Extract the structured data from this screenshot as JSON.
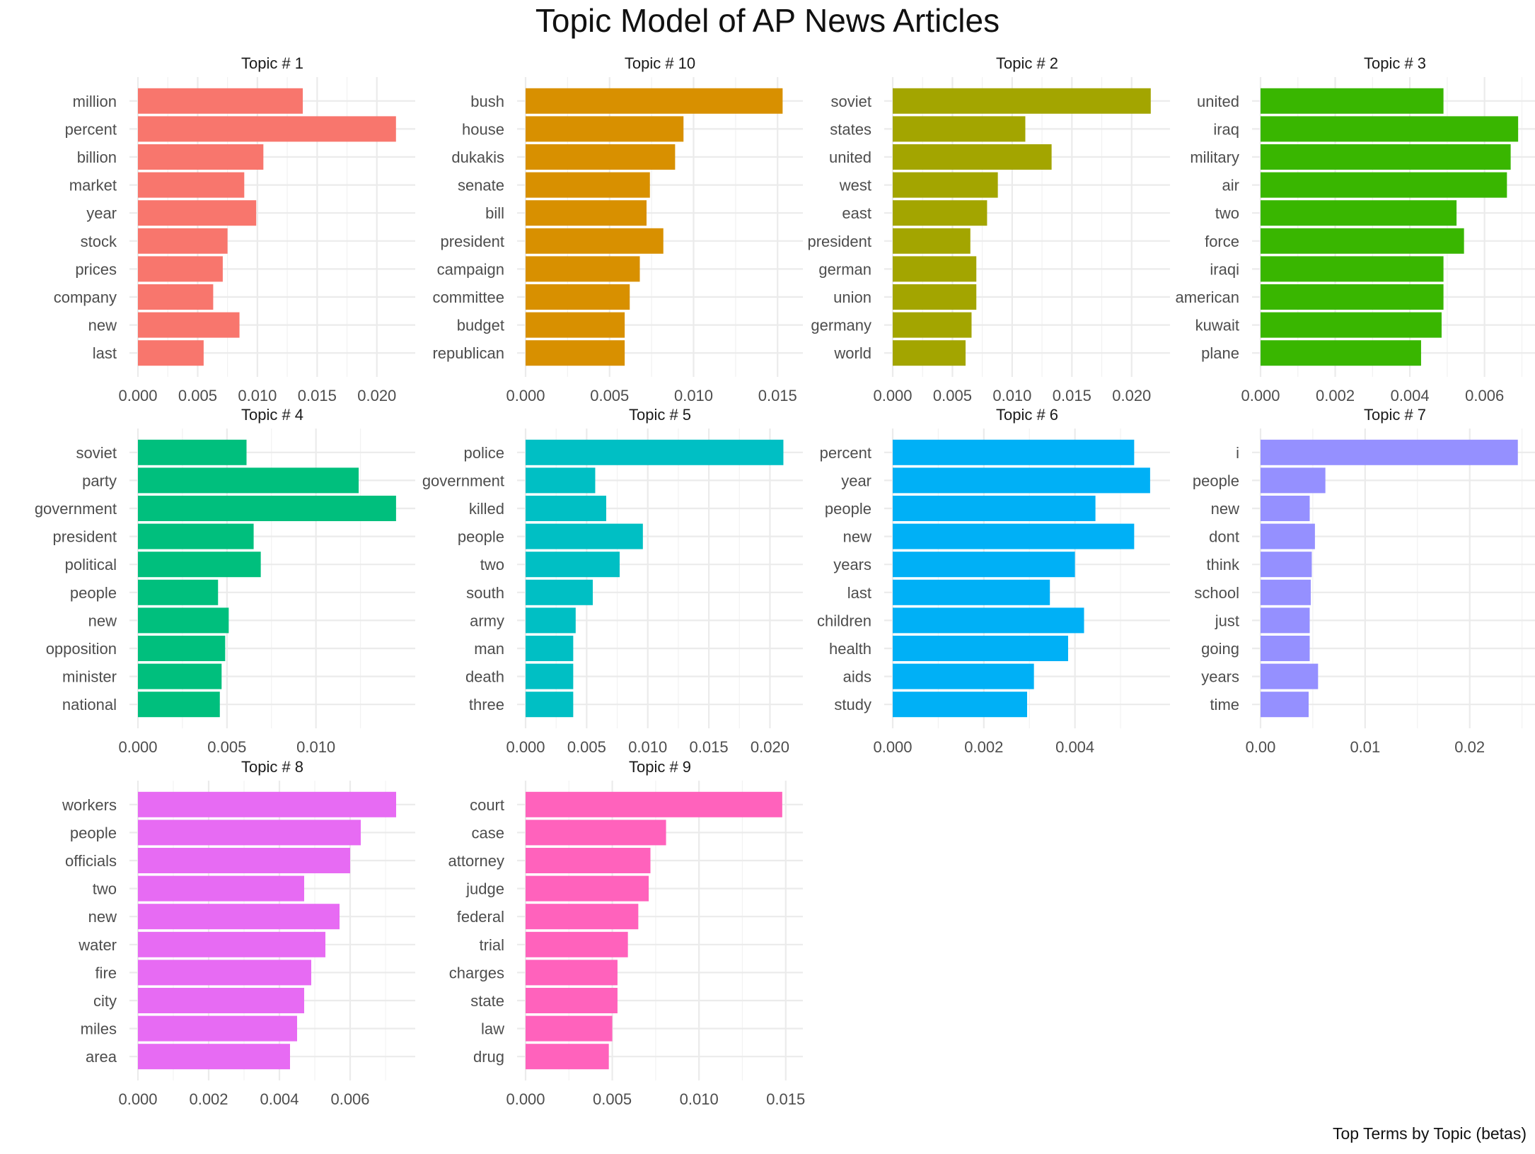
{
  "title": "Topic Model of AP News Articles",
  "caption": "Top Terms by Topic (betas)",
  "chart_data": [
    {
      "type": "bar",
      "orientation": "horizontal",
      "title": "Topic # 1",
      "color": "#F8766D",
      "categories": [
        "million",
        "percent",
        "billion",
        "market",
        "year",
        "stock",
        "prices",
        "company",
        "new",
        "last"
      ],
      "values": [
        0.0138,
        0.0216,
        0.0105,
        0.0089,
        0.0099,
        0.0075,
        0.0071,
        0.0063,
        0.0085,
        0.0055
      ],
      "ticks": [
        "0.000",
        "0.005",
        "0.010",
        "0.015",
        "0.020"
      ],
      "tick_values": [
        0,
        0.005,
        0.01,
        0.015,
        0.02
      ],
      "xlim": [
        0,
        0.0225
      ]
    },
    {
      "type": "bar",
      "orientation": "horizontal",
      "title": "Topic # 10",
      "color": "#D89000",
      "categories": [
        "bush",
        "house",
        "dukakis",
        "senate",
        "bill",
        "president",
        "campaign",
        "committee",
        "budget",
        "republican"
      ],
      "values": [
        0.0153,
        0.0094,
        0.0089,
        0.0074,
        0.0072,
        0.0082,
        0.0068,
        0.0062,
        0.0059,
        0.0059
      ],
      "ticks": [
        "0.000",
        "0.005",
        "0.010",
        "0.015"
      ],
      "tick_values": [
        0,
        0.005,
        0.01,
        0.015
      ],
      "xlim": [
        0,
        0.016
      ]
    },
    {
      "type": "bar",
      "orientation": "horizontal",
      "title": "Topic # 2",
      "color": "#A3A500",
      "categories": [
        "soviet",
        "states",
        "united",
        "west",
        "east",
        "president",
        "german",
        "union",
        "germany",
        "world"
      ],
      "values": [
        0.0216,
        0.0111,
        0.0133,
        0.0088,
        0.0079,
        0.0065,
        0.007,
        0.007,
        0.0066,
        0.0061
      ],
      "ticks": [
        "0.000",
        "0.005",
        "0.010",
        "0.015",
        "0.020"
      ],
      "tick_values": [
        0,
        0.005,
        0.01,
        0.015,
        0.02
      ],
      "xlim": [
        0,
        0.0225
      ]
    },
    {
      "type": "bar",
      "orientation": "horizontal",
      "title": "Topic # 3",
      "color": "#39B600",
      "categories": [
        "united",
        "iraq",
        "military",
        "air",
        "two",
        "force",
        "iraqi",
        "american",
        "kuwait",
        "plane"
      ],
      "values": [
        0.0049,
        0.0069,
        0.0067,
        0.0066,
        0.00525,
        0.00545,
        0.0049,
        0.0049,
        0.00485,
        0.0043
      ],
      "ticks": [
        "0.000",
        "0.002",
        "0.004",
        "0.006"
      ],
      "tick_values": [
        0,
        0.002,
        0.004,
        0.006
      ],
      "xlim": [
        0,
        0.0072
      ]
    },
    {
      "type": "bar",
      "orientation": "horizontal",
      "title": "Topic # 4",
      "color": "#00BF7D",
      "categories": [
        "soviet",
        "party",
        "government",
        "president",
        "political",
        "people",
        "new",
        "opposition",
        "minister",
        "national"
      ],
      "values": [
        0.0061,
        0.0124,
        0.0145,
        0.0065,
        0.0069,
        0.0045,
        0.0051,
        0.0049,
        0.0047,
        0.0046
      ],
      "ticks": [
        "0.000",
        "0.005",
        "0.010"
      ],
      "tick_values": [
        0,
        0.005,
        0.01
      ],
      "xlim": [
        0,
        0.0151
      ]
    },
    {
      "type": "bar",
      "orientation": "horizontal",
      "title": "Topic # 5",
      "color": "#00BFC4",
      "categories": [
        "police",
        "government",
        "killed",
        "people",
        "two",
        "south",
        "army",
        "man",
        "death",
        "three"
      ],
      "values": [
        0.0211,
        0.0057,
        0.0066,
        0.0096,
        0.0077,
        0.0055,
        0.0041,
        0.0039,
        0.0039,
        0.0039
      ],
      "ticks": [
        "0.000",
        "0.005",
        "0.010",
        "0.015",
        "0.020"
      ],
      "tick_values": [
        0,
        0.005,
        0.01,
        0.015,
        0.02
      ],
      "xlim": [
        0,
        0.022
      ]
    },
    {
      "type": "bar",
      "orientation": "horizontal",
      "title": "Topic # 6",
      "color": "#00B0F6",
      "categories": [
        "percent",
        "year",
        "people",
        "new",
        "years",
        "last",
        "children",
        "health",
        "aids",
        "study"
      ],
      "values": [
        0.0053,
        0.00565,
        0.00445,
        0.0053,
        0.004,
        0.00345,
        0.0042,
        0.00385,
        0.0031,
        0.00295
      ],
      "ticks": [
        "0.000",
        "0.002",
        "0.004"
      ],
      "tick_values": [
        0,
        0.002,
        0.004
      ],
      "xlim": [
        0,
        0.0059
      ]
    },
    {
      "type": "bar",
      "orientation": "horizontal",
      "title": "Topic # 7",
      "color": "#9590FF",
      "categories": [
        "i",
        "people",
        "new",
        "dont",
        "think",
        "school",
        "just",
        "going",
        "years",
        "time"
      ],
      "values": [
        0.0246,
        0.0062,
        0.0047,
        0.0052,
        0.0049,
        0.0048,
        0.0047,
        0.0047,
        0.0055,
        0.0046
      ],
      "ticks": [
        "0.00",
        "0.01",
        "0.02"
      ],
      "tick_values": [
        0,
        0.01,
        0.02
      ],
      "xlim": [
        0,
        0.0257
      ]
    },
    {
      "type": "bar",
      "orientation": "horizontal",
      "title": "Topic # 8",
      "color": "#E76BF3",
      "categories": [
        "workers",
        "people",
        "officials",
        "two",
        "new",
        "water",
        "fire",
        "city",
        "miles",
        "area"
      ],
      "values": [
        0.0073,
        0.0063,
        0.006,
        0.0047,
        0.0057,
        0.0053,
        0.0049,
        0.0047,
        0.0045,
        0.0043
      ],
      "ticks": [
        "0.000",
        "0.002",
        "0.004",
        "0.006"
      ],
      "tick_values": [
        0,
        0.002,
        0.004,
        0.006
      ],
      "xlim": [
        0,
        0.0076
      ]
    },
    {
      "type": "bar",
      "orientation": "horizontal",
      "title": "Topic # 9",
      "color": "#FF62BC",
      "categories": [
        "court",
        "case",
        "attorney",
        "judge",
        "federal",
        "trial",
        "charges",
        "state",
        "law",
        "drug"
      ],
      "values": [
        0.0148,
        0.0081,
        0.0072,
        0.0071,
        0.0065,
        0.0059,
        0.0053,
        0.0053,
        0.005,
        0.0048
      ],
      "ticks": [
        "0.000",
        "0.005",
        "0.010",
        "0.015"
      ],
      "tick_values": [
        0,
        0.005,
        0.01,
        0.015
      ],
      "xlim": [
        0,
        0.0155
      ]
    }
  ]
}
